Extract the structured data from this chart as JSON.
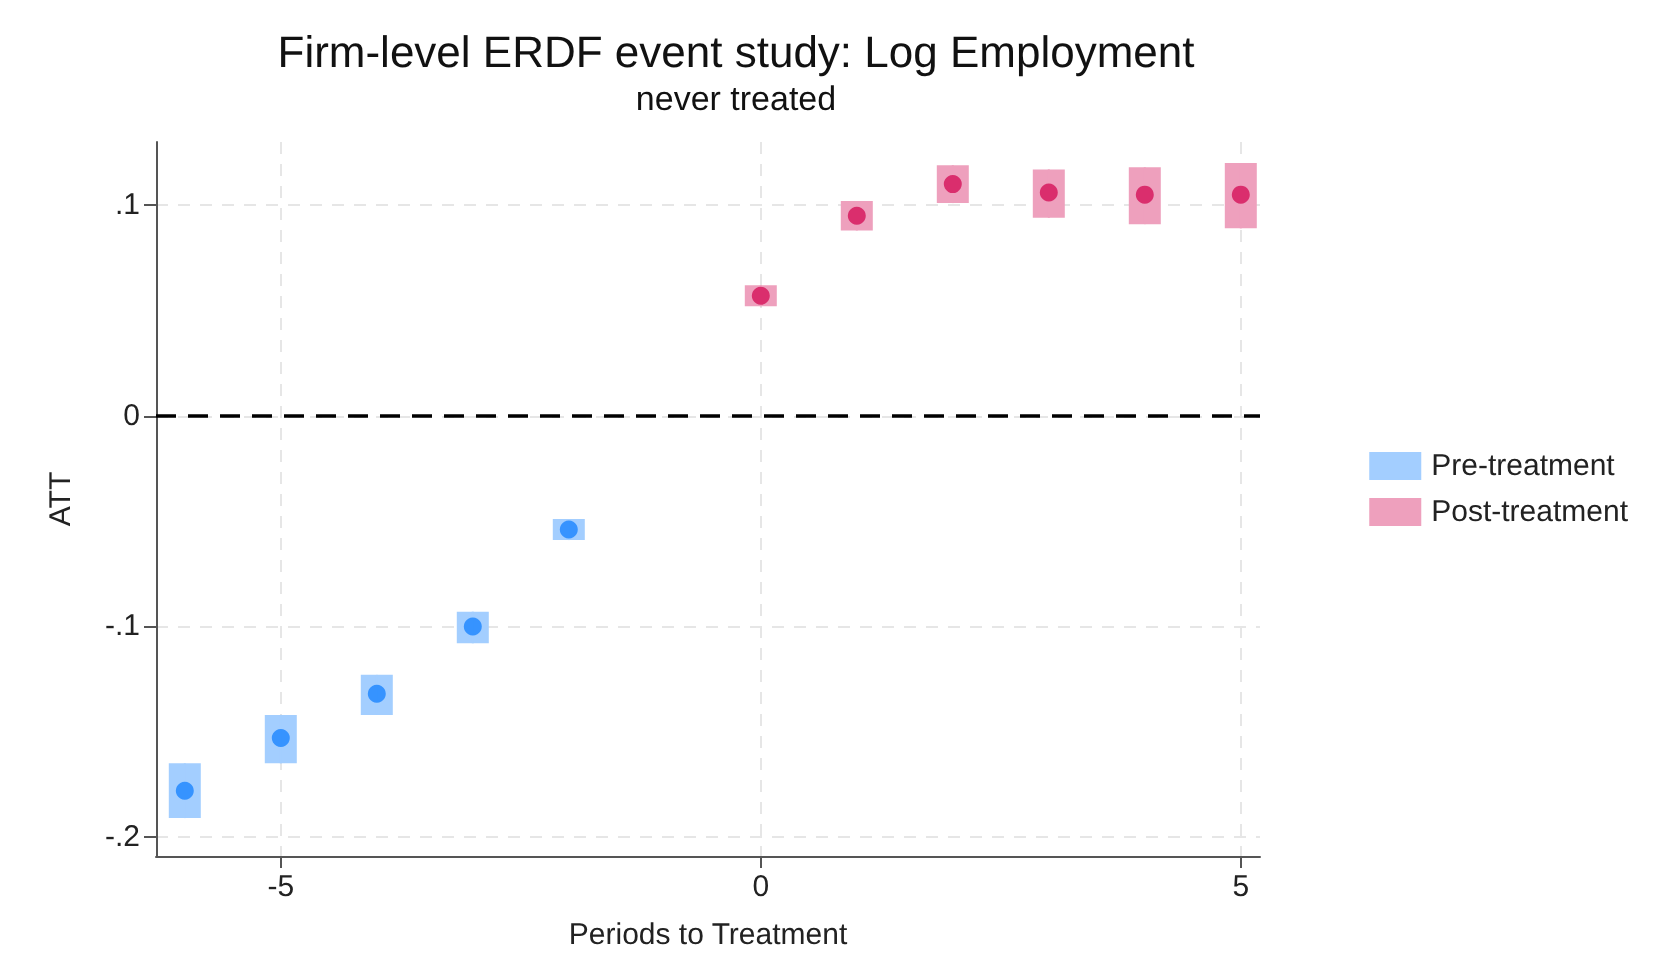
{
  "chart_data": {
    "type": "scatter",
    "title": "Firm-level ERDF event study: Log Employment",
    "subtitle": "never treated",
    "xlabel": "Periods to Treatment",
    "ylabel": "ATT",
    "series": [
      {
        "name": "Pre-treatment",
        "color": "#1a85ff",
        "x": [
          -6,
          -5,
          -4,
          -3,
          -2
        ],
        "values": [
          -0.178,
          -0.153,
          -0.132,
          -0.1,
          -0.054
        ],
        "errors": [
          [
            -0.191,
            -0.165
          ],
          [
            -0.165,
            -0.142
          ],
          [
            -0.142,
            -0.123
          ],
          [
            -0.108,
            -0.093
          ],
          [
            -0.059,
            -0.049
          ]
        ]
      },
      {
        "name": "Post-treatment",
        "color": "#d41159",
        "x": [
          0,
          1,
          2,
          3,
          4,
          5
        ],
        "values": [
          0.057,
          0.095,
          0.11,
          0.106,
          0.105,
          0.105
        ],
        "errors": [
          [
            0.052,
            0.062
          ],
          [
            0.088,
            0.102
          ],
          [
            0.101,
            0.119
          ],
          [
            0.094,
            0.117
          ],
          [
            0.091,
            0.118
          ],
          [
            0.089,
            0.12
          ]
        ]
      }
    ],
    "xlim": [
      -6.3,
      5.2
    ],
    "xticks": [
      -5,
      0,
      5
    ],
    "ylim": [
      -0.209,
      0.13
    ],
    "yticks": [
      {
        "value": -0.2,
        "label": "-.2"
      },
      {
        "value": -0.1,
        "label": "-.1"
      },
      0,
      {
        "value": 0.1,
        "label": ".1"
      }
    ],
    "ref_lines": [
      {
        "axis": "y",
        "value": 0,
        "color": "#000000",
        "line_style": "dashed"
      }
    ],
    "grid": true,
    "legend": "right",
    "marker": "circle"
  }
}
